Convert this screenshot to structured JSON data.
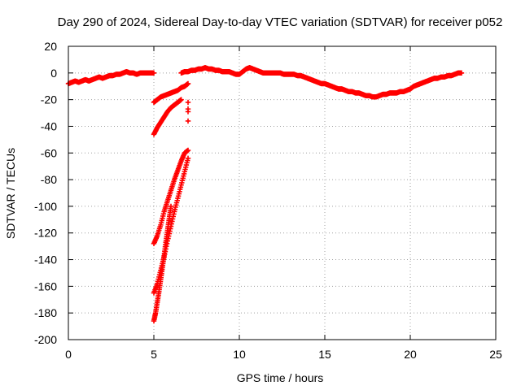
{
  "chart_data": {
    "type": "scatter",
    "title": "Day 290 of 2024, Sidereal Day-to-day VTEC variation (SDTVAR) for receiver p052",
    "xlabel": "GPS time / hours",
    "ylabel": "SDTVAR / TECUs",
    "xlim": [
      0,
      25
    ],
    "ylim": [
      -200,
      20
    ],
    "xticks": [
      0,
      5,
      10,
      15,
      20,
      25
    ],
    "yticks": [
      20,
      0,
      -20,
      -40,
      -60,
      -80,
      -100,
      -120,
      -140,
      -160,
      -180,
      -200
    ],
    "grid": true,
    "marker": "+",
    "color": "#ff0000",
    "series": [
      {
        "name": "main-trace",
        "x": [
          0.0,
          0.2,
          0.4,
          0.6,
          0.8,
          1.0,
          1.2,
          1.4,
          1.6,
          1.8,
          2.0,
          2.2,
          2.4,
          2.6,
          2.8,
          3.0,
          3.2,
          3.4,
          3.6,
          3.8,
          4.0,
          4.2,
          4.4,
          4.6,
          4.8,
          5.0
        ],
        "y": [
          -8,
          -7,
          -6,
          -7,
          -6,
          -5,
          -6,
          -5,
          -4,
          -3,
          -4,
          -3,
          -2,
          -2,
          -1,
          -1,
          0,
          1,
          0,
          0,
          -1,
          0,
          0,
          0,
          0,
          0
        ]
      },
      {
        "name": "afternoon-trace",
        "x": [
          6.6,
          6.8,
          7.0,
          7.2,
          7.4,
          7.6,
          7.8,
          8.0,
          8.2,
          8.4,
          8.6,
          8.8,
          9.0,
          9.2,
          9.4,
          9.6,
          9.8,
          10.0,
          10.2,
          10.4,
          10.6,
          10.8,
          11.0,
          11.2,
          11.4,
          11.6,
          11.8,
          12.0,
          12.2,
          12.4,
          12.6,
          12.8,
          13.0,
          13.2,
          13.4,
          13.6,
          13.8,
          14.0,
          14.2,
          14.4,
          14.6,
          14.8,
          15.0,
          15.2,
          15.4,
          15.6,
          15.8,
          16.0,
          16.2,
          16.4,
          16.6,
          16.8,
          17.0,
          17.2,
          17.4,
          17.6,
          17.8,
          18.0,
          18.2,
          18.4,
          18.6,
          18.8,
          19.0,
          19.2,
          19.4,
          19.6,
          19.8,
          20.0,
          20.2,
          20.4,
          20.6,
          20.8,
          21.0,
          21.2,
          21.4,
          21.6,
          21.8,
          22.0,
          22.2,
          22.4,
          22.6,
          22.8,
          23.0
        ],
        "y": [
          0,
          1,
          1,
          2,
          2,
          3,
          3,
          4,
          3,
          3,
          2,
          2,
          1,
          1,
          1,
          0,
          -1,
          -1,
          1,
          3,
          4,
          3,
          2,
          1,
          0,
          0,
          0,
          0,
          0,
          0,
          -1,
          -1,
          -1,
          -1,
          -2,
          -2,
          -3,
          -4,
          -5,
          -6,
          -7,
          -8,
          -8,
          -9,
          -10,
          -11,
          -12,
          -12,
          -13,
          -14,
          -14,
          -15,
          -15,
          -16,
          -17,
          -17,
          -18,
          -18,
          -17,
          -16,
          -16,
          -15,
          -15,
          -15,
          -14,
          -14,
          -13,
          -12,
          -10,
          -9,
          -8,
          -7,
          -6,
          -5,
          -4,
          -4,
          -3,
          -3,
          -2,
          -2,
          -1,
          0,
          0
        ]
      },
      {
        "name": "rising-arc-1",
        "x": [
          5.0,
          5.2,
          5.4,
          5.6,
          5.8,
          6.0,
          6.2,
          6.4,
          6.6,
          6.8,
          7.0
        ],
        "y": [
          -22,
          -20,
          -18,
          -17,
          -16,
          -15,
          -14,
          -13,
          -11,
          -10,
          -8
        ]
      },
      {
        "name": "rising-arc-2",
        "x": [
          5.0,
          5.2,
          5.4,
          5.6,
          5.8,
          6.0,
          6.2,
          6.4,
          6.6
        ],
        "y": [
          -46,
          -41,
          -37,
          -33,
          -29,
          -26,
          -24,
          -22,
          -20
        ]
      },
      {
        "name": "steep-arc-1",
        "x": [
          5.0,
          5.2,
          5.4,
          5.6,
          5.8,
          6.0,
          6.2,
          6.4,
          6.6,
          6.8,
          7.0
        ],
        "y": [
          -128,
          -122,
          -114,
          -104,
          -96,
          -88,
          -80,
          -73,
          -66,
          -60,
          -58
        ]
      },
      {
        "name": "steep-arc-2",
        "x": [
          5.0,
          5.2,
          5.4,
          5.6,
          5.8,
          6.0,
          6.2,
          6.4,
          6.6,
          6.8,
          7.0
        ],
        "y": [
          -165,
          -158,
          -148,
          -138,
          -126,
          -115,
          -104,
          -94,
          -84,
          -74,
          -64
        ]
      },
      {
        "name": "steep-arc-3",
        "x": [
          5.0,
          5.1,
          5.2,
          5.3,
          5.4,
          5.5,
          5.6,
          5.7,
          5.8,
          5.9,
          6.0
        ],
        "y": [
          -186,
          -180,
          -172,
          -164,
          -155,
          -146,
          -137,
          -127,
          -118,
          -109,
          -100
        ]
      },
      {
        "name": "isolated-points",
        "x": [
          7.0,
          7.0,
          7.0,
          7.0
        ],
        "y": [
          -22,
          -27,
          -29,
          -36
        ]
      }
    ]
  }
}
